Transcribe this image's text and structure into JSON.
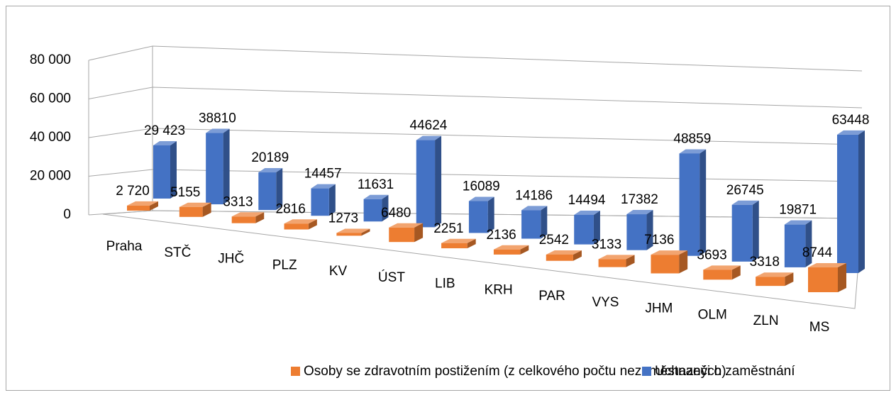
{
  "chart_data": {
    "type": "bar3d",
    "categories": [
      "Praha",
      "STČ",
      "JHČ",
      "PLZ",
      "KV",
      "ÚST",
      "LIB",
      "KRH",
      "PAR",
      "VYS",
      "JHM",
      "OLM",
      "ZLN",
      "MS"
    ],
    "series": [
      {
        "name": "Osoby se zdravotním postižením (z celkového počtu nezaměstnaných)",
        "color": "#ed7d31",
        "values": [
          2720,
          5155,
          3313,
          2816,
          1273,
          6480,
          2251,
          2136,
          2542,
          3133,
          7136,
          3693,
          3318,
          8744
        ],
        "value_labels": [
          "2 720",
          "5155",
          "3313",
          "2816",
          "1273",
          "6480",
          "2251",
          "2136",
          "2542",
          "3133",
          "7136",
          "3693",
          "3318",
          "8744"
        ]
      },
      {
        "name": "Uchazeči o zaměstnání",
        "color": "#4472c4",
        "values": [
          29423,
          38810,
          20189,
          14457,
          11631,
          44624,
          16089,
          14186,
          14494,
          17382,
          48859,
          26745,
          19871,
          63448
        ],
        "value_labels": [
          "29 423",
          "38810",
          "20189",
          "14457",
          "11631",
          "44624",
          "16089",
          "14186",
          "14494",
          "17382",
          "48859",
          "26745",
          "19871",
          "63448"
        ]
      }
    ],
    "ylim": [
      0,
      80000
    ],
    "yticks": [
      0,
      {
        "value": 20000,
        "label": "20 000"
      },
      {
        "value": 40000,
        "label": "40 000"
      },
      {
        "value": 60000,
        "label": "60 000"
      },
      {
        "value": 80000,
        "label": "80 000"
      }
    ],
    "grid": true,
    "legend": "bottom"
  }
}
